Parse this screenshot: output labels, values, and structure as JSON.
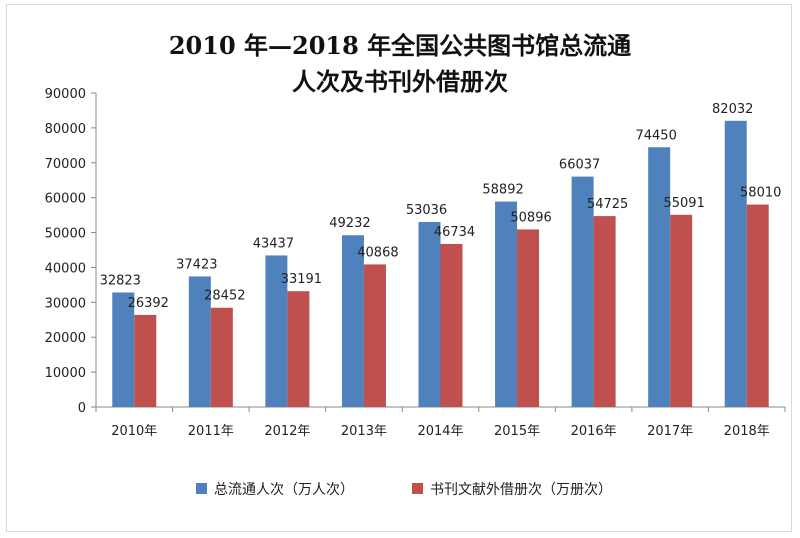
{
  "chart_data": {
    "type": "bar",
    "title": [
      "2010 年—2018 年全国公共图书馆总流通",
      "人次及书刊外借册次"
    ],
    "categories": [
      "2010年",
      "2011年",
      "2012年",
      "2013年",
      "2014年",
      "2015年",
      "2016年",
      "2017年",
      "2018年"
    ],
    "series": [
      {
        "name": "总流通人次（万人次）",
        "color": "#4f81bd",
        "values": [
          32823,
          37423,
          43437,
          49232,
          53036,
          58892,
          66037,
          74450,
          82032
        ]
      },
      {
        "name": "书刊文献外借册次（万册次）",
        "color": "#c0504d",
        "values": [
          26392,
          28452,
          33191,
          40868,
          46734,
          50896,
          54725,
          55091,
          58010
        ]
      }
    ],
    "y_ticks": [
      "0",
      "10000",
      "20000",
      "30000",
      "40000",
      "50000",
      "60000",
      "70000",
      "80000",
      "90000"
    ],
    "ylim": [
      0,
      90000
    ],
    "grid": false,
    "legend_position": "bottom"
  }
}
